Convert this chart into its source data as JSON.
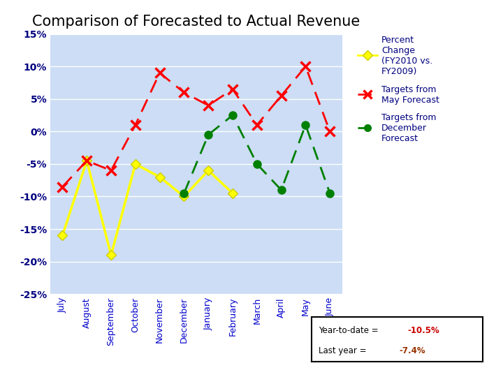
{
  "title": "Comparison of Forecasted to Actual Revenue",
  "months": [
    "July",
    "August",
    "September",
    "October",
    "November",
    "December",
    "January",
    "February",
    "March",
    "April",
    "May",
    "June"
  ],
  "yellow_line": [
    -16,
    -4.5,
    -19,
    -5,
    -7,
    -10,
    -6,
    -9.5,
    null,
    null,
    null,
    null
  ],
  "red_line": [
    -8.5,
    -4.5,
    -6,
    1,
    9,
    6,
    4,
    6.5,
    1,
    5.5,
    10,
    0
  ],
  "green_line": [
    null,
    null,
    null,
    null,
    null,
    -9.5,
    -0.5,
    2.5,
    -5,
    -9,
    1,
    -9.5
  ],
  "ylim": [
    -25,
    15
  ],
  "yticks": [
    -25,
    -20,
    -15,
    -10,
    -5,
    0,
    5,
    10,
    15
  ],
  "ytick_labels": [
    "-25%",
    "-20%",
    "-15%",
    "-10%",
    "-5%",
    "0%",
    "5%",
    "10%",
    "15%"
  ],
  "fig_bg": "#ffffff",
  "plot_bg": "#ccddf5",
  "grid_color": "#aabbdd",
  "yellow_color": "#ffff00",
  "red_color": "#ff0000",
  "green_color": "#008000",
  "legend_text_color": "#000080",
  "legend_yellow": "Percent\nChange\n(FY2010 vs.\nFY2009)",
  "legend_red": "Targets from\nMay Forecast",
  "legend_green": "Targets from\nDecember\nForecast",
  "ann_line1_pre": "Year-to-date = ",
  "ann_line1_val": "-10.5%",
  "ann_line2_pre": "Last year = ",
  "ann_line2_val": "-7.4%",
  "ann_val_color": "#cc0000",
  "ann_val2_color": "#993300"
}
